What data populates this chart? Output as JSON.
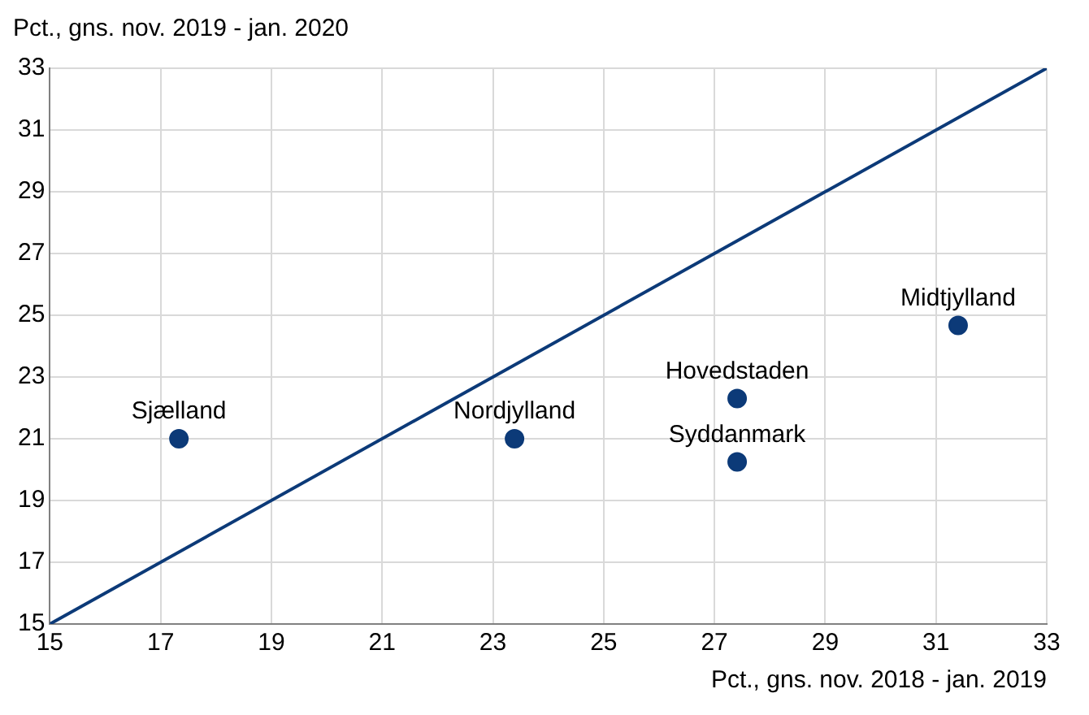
{
  "chart_data": {
    "type": "scatter",
    "xlabel": "Pct., gns. nov. 2018 - jan. 2019",
    "ylabel": "Pct., gns. nov. 2019 - jan. 2020",
    "xlim": [
      15,
      33
    ],
    "xticks": [
      15,
      17,
      19,
      21,
      23,
      25,
      27,
      29,
      31,
      33
    ],
    "ylim": [
      15,
      33
    ],
    "yticks": [
      15,
      17,
      19,
      21,
      23,
      25,
      27,
      29,
      31,
      33
    ],
    "grid": true,
    "legend": false,
    "marker": "circle",
    "series": [
      {
        "color": "#0c3a78",
        "x": [
          17.33,
          23.39,
          27.41,
          27.41,
          31.4
        ],
        "values": [
          21.0,
          21.0,
          22.3,
          20.25,
          24.67
        ]
      },
      {
        "type": "line",
        "color": "#0c3a78",
        "marker": "none",
        "x": [
          15,
          33
        ],
        "values": [
          15,
          33
        ]
      }
    ],
    "annotations": [
      {
        "text": "Sjælland",
        "x": 17.33,
        "y": 21.0
      },
      {
        "text": "Nordjylland",
        "x": 23.39,
        "y": 21.0
      },
      {
        "text": "Hovedstaden",
        "x": 27.41,
        "y": 22.3
      },
      {
        "text": "Syddanmark",
        "x": 27.41,
        "y": 20.25
      },
      {
        "text": "Midtjylland",
        "x": 31.4,
        "y": 24.67
      }
    ]
  }
}
